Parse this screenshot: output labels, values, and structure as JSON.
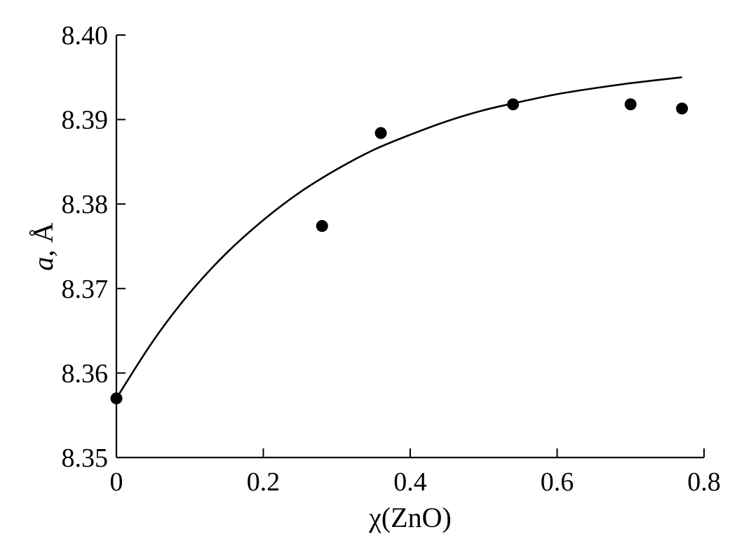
{
  "chart_data": {
    "type": "scatter",
    "xlabel": "χ(ZnO)",
    "ylabel_italic": "a",
    "ylabel_rest": ", Å",
    "xlim": [
      0,
      0.8
    ],
    "ylim": [
      8.35,
      8.4
    ],
    "xticks": [
      0,
      0.2,
      0.4,
      0.6,
      0.8
    ],
    "xtick_labels": [
      "0",
      "0.2",
      "0.4",
      "0.6",
      "0.8"
    ],
    "yticks": [
      8.35,
      8.36,
      8.37,
      8.38,
      8.39,
      8.4
    ],
    "ytick_labels": [
      "8.35",
      "8.36",
      "8.37",
      "8.38",
      "8.39",
      "8.40"
    ],
    "grid": false,
    "legend": "none",
    "series": [
      {
        "kind": "points",
        "x": [
          0,
          0.28,
          0.36,
          0.54,
          0.7,
          0.77
        ],
        "y": [
          8.357,
          8.3774,
          8.3884,
          8.3918,
          8.3918,
          8.3913
        ]
      },
      {
        "kind": "fit-curve",
        "x": [
          0,
          0.05,
          0.1,
          0.15,
          0.2,
          0.25,
          0.3,
          0.35,
          0.4,
          0.45,
          0.5,
          0.55,
          0.6,
          0.65,
          0.7,
          0.77
        ],
        "y": [
          8.357,
          8.3638,
          8.3695,
          8.3742,
          8.3781,
          8.3814,
          8.3841,
          8.3864,
          8.3882,
          8.3898,
          8.3911,
          8.3921,
          8.393,
          8.3937,
          8.3943,
          8.395
        ]
      }
    ]
  }
}
